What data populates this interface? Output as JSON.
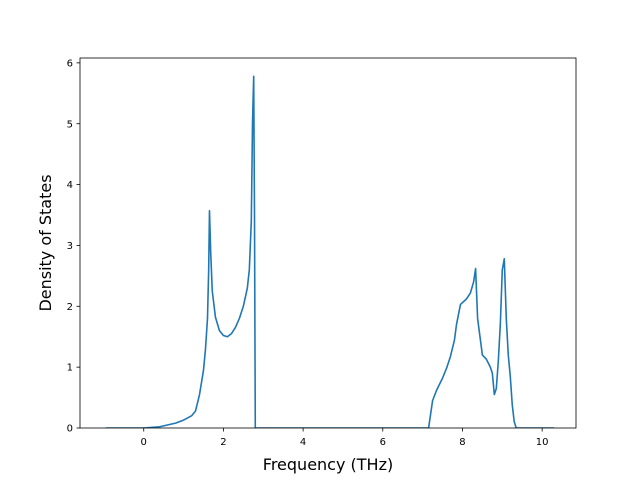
{
  "chart_data": {
    "type": "line",
    "title": "",
    "xlabel": "Frequency (THz)",
    "ylabel": "Density of States",
    "xlim": [
      -1.6,
      10.85
    ],
    "ylim": [
      0,
      6.08
    ],
    "xticks": [
      0,
      2,
      4,
      6,
      8,
      10
    ],
    "yticks": [
      0,
      1,
      2,
      3,
      4,
      5,
      6
    ],
    "grid": false,
    "legend": "none",
    "series": [
      {
        "color": "#1f77b4",
        "x": [
          -0.95,
          0.0,
          0.4,
          0.8,
          1.0,
          1.2,
          1.3,
          1.4,
          1.5,
          1.55,
          1.6,
          1.63,
          1.65,
          1.68,
          1.72,
          1.8,
          1.9,
          2.0,
          2.1,
          2.2,
          2.3,
          2.4,
          2.5,
          2.6,
          2.65,
          2.7,
          2.73,
          2.76,
          2.78,
          2.8,
          2.85,
          3.5,
          6.0,
          7.15,
          7.25,
          7.35,
          7.5,
          7.6,
          7.7,
          7.8,
          7.85,
          7.95,
          8.1,
          8.2,
          8.28,
          8.33,
          8.38,
          8.5,
          8.6,
          8.7,
          8.75,
          8.8,
          8.85,
          8.9,
          8.95,
          9.0,
          9.05,
          9.1,
          9.15,
          9.2,
          9.25,
          9.3,
          9.35,
          9.4,
          10.3
        ],
        "y": [
          0,
          0,
          0.02,
          0.08,
          0.13,
          0.2,
          0.28,
          0.55,
          0.95,
          1.3,
          1.8,
          2.6,
          3.57,
          2.9,
          2.25,
          1.82,
          1.6,
          1.52,
          1.5,
          1.55,
          1.65,
          1.8,
          2.0,
          2.3,
          2.6,
          3.4,
          5.0,
          5.78,
          3.5,
          0.0,
          0.0,
          0.0,
          0.0,
          0.0,
          0.45,
          0.62,
          0.82,
          0.98,
          1.18,
          1.45,
          1.7,
          2.03,
          2.12,
          2.22,
          2.4,
          2.62,
          1.8,
          1.2,
          1.13,
          1.0,
          0.9,
          0.55,
          0.65,
          1.1,
          1.7,
          2.6,
          2.78,
          1.8,
          1.2,
          0.85,
          0.38,
          0.1,
          0.0,
          0.0,
          0.0
        ]
      }
    ]
  }
}
